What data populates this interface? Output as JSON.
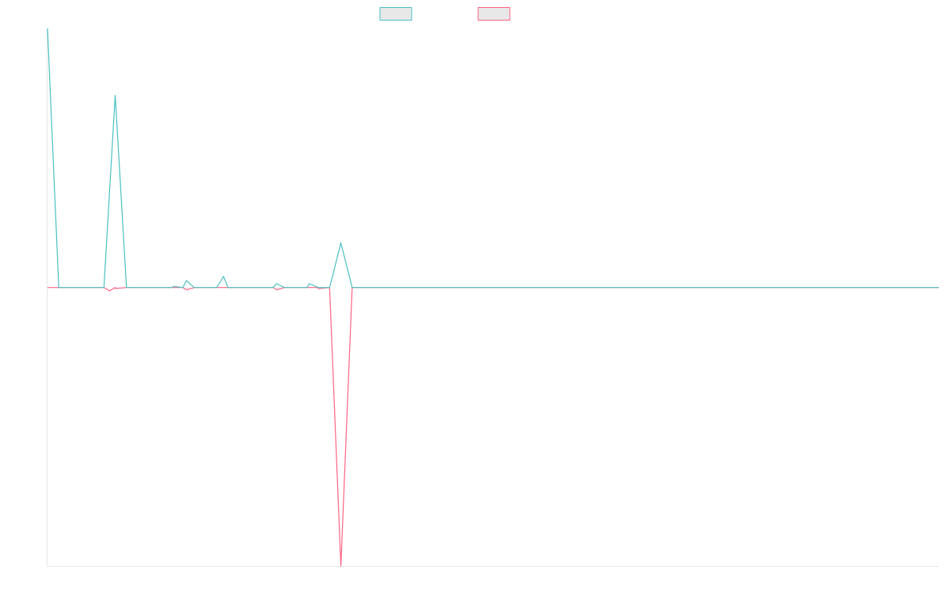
{
  "chart_data": {
    "type": "line",
    "title": "",
    "xlabel": "",
    "ylabel": "",
    "grid": false,
    "legend_position": "top-center",
    "ylim": [
      -1000,
      930
    ],
    "x": [
      0,
      1,
      2,
      3,
      4,
      5,
      6,
      7,
      8,
      9,
      10,
      11,
      12,
      13,
      14,
      15,
      16,
      17,
      18,
      19,
      20,
      21,
      22,
      23,
      24,
      25,
      26,
      27,
      28,
      29,
      30,
      31,
      32,
      33,
      34,
      35,
      36,
      37,
      38,
      39,
      40,
      41,
      42,
      43,
      44,
      45,
      46,
      47,
      48,
      49,
      50,
      51,
      52,
      53,
      54,
      55,
      56,
      57,
      58,
      59,
      60,
      61,
      62,
      63,
      64,
      65,
      66,
      67,
      68,
      69,
      70,
      71,
      72,
      73,
      74,
      75,
      76,
      77,
      78,
      79
    ],
    "series": [
      {
        "color": "#4bc0c0",
        "values": [
          930,
          0,
          0,
          0,
          0,
          0,
          690,
          0,
          0,
          0,
          0,
          0,
          0,
          0,
          0,
          0,
          0,
          0,
          0,
          0,
          0,
          0,
          0,
          0,
          0,
          0,
          160,
          0,
          0,
          0,
          0,
          0,
          0,
          0,
          0,
          0,
          0,
          0,
          0,
          0,
          0,
          0,
          0,
          0,
          0,
          0,
          0,
          0,
          0,
          0,
          0,
          0,
          0,
          0,
          0,
          0,
          0,
          0,
          0,
          0,
          0,
          0,
          0,
          0,
          0,
          0,
          0,
          0,
          0,
          0,
          0,
          0,
          0,
          0,
          0,
          0,
          0,
          0,
          0,
          0
        ]
      },
      {
        "color": "#ff6384",
        "values": [
          0,
          0,
          0,
          0,
          0,
          0,
          0,
          0,
          0,
          0,
          0,
          0,
          0,
          0,
          0,
          0,
          0,
          0,
          0,
          0,
          0,
          0,
          0,
          0,
          0,
          0,
          -1000,
          0,
          0,
          0,
          0,
          0,
          0,
          0,
          0,
          0,
          0,
          0,
          0,
          0,
          0,
          0,
          0,
          0,
          0,
          0,
          0,
          0,
          0,
          0,
          0,
          0,
          0,
          0,
          0,
          0,
          0,
          0,
          0,
          0,
          0,
          0,
          0,
          0,
          0,
          0,
          0,
          0,
          0,
          0,
          0,
          0,
          0,
          0,
          0,
          0,
          0,
          0,
          0,
          0
        ]
      }
    ],
    "minor_points": [
      {
        "series": 0,
        "x": 11.2,
        "y": 4
      },
      {
        "series": 0,
        "x": 12.3,
        "y": 25
      },
      {
        "series": 0,
        "x": 15.6,
        "y": 40
      },
      {
        "series": 0,
        "x": 20.3,
        "y": 14
      },
      {
        "series": 0,
        "x": 23.2,
        "y": 14
      },
      {
        "series": 1,
        "x": 5.5,
        "y": -12
      },
      {
        "series": 1,
        "x": 6.0,
        "y": -3
      },
      {
        "series": 1,
        "x": 12.3,
        "y": -8
      },
      {
        "series": 1,
        "x": 20.3,
        "y": -8
      },
      {
        "series": 1,
        "x": 24.0,
        "y": -4
      }
    ]
  }
}
